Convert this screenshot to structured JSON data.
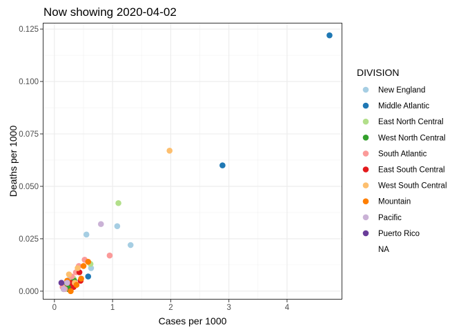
{
  "chart_data": {
    "type": "scatter",
    "title": "Now showing 2020-04-02",
    "xlabel": "Cases per 1000",
    "ylabel": "Deaths per 1000",
    "xlim": [
      -0.2,
      4.95
    ],
    "ylim": [
      -0.004,
      0.128
    ],
    "xticks": [
      0,
      1,
      2,
      3,
      4
    ],
    "xtick_labels": [
      "0",
      "1",
      "2",
      "3",
      "4"
    ],
    "yticks": [
      0.0,
      0.025,
      0.05,
      0.075,
      0.1,
      0.125
    ],
    "ytick_labels": [
      "0.000",
      "0.025",
      "0.050",
      "0.075",
      "0.100",
      "0.125"
    ],
    "grid": true,
    "legend_title": "DIVISION",
    "legend_position": "right",
    "series": [
      {
        "name": "New England",
        "color": "#a6cee3",
        "points": [
          [
            0.55,
            0.027
          ],
          [
            1.08,
            0.031
          ],
          [
            1.31,
            0.022
          ],
          [
            0.63,
            0.011
          ],
          [
            0.27,
            0.006
          ],
          [
            0.18,
            0.002
          ]
        ]
      },
      {
        "name": "Middle Atlantic",
        "color": "#1f78b4",
        "points": [
          [
            4.73,
            0.122
          ],
          [
            2.89,
            0.06
          ],
          [
            0.58,
            0.007
          ]
        ]
      },
      {
        "name": "East North Central",
        "color": "#b2df8a",
        "points": [
          [
            1.1,
            0.042
          ],
          [
            0.62,
            0.013
          ],
          [
            0.33,
            0.006
          ],
          [
            0.22,
            0.003
          ],
          [
            0.28,
            0.004
          ]
        ]
      },
      {
        "name": "West North Central",
        "color": "#33a02c",
        "points": [
          [
            0.2,
            0.003
          ],
          [
            0.26,
            0.002
          ],
          [
            0.3,
            0.004
          ],
          [
            0.16,
            0.001
          ],
          [
            0.34,
            0.005
          ],
          [
            0.24,
            0.001
          ]
        ]
      },
      {
        "name": "South Atlantic",
        "color": "#fb9a99",
        "points": [
          [
            0.95,
            0.017
          ],
          [
            0.52,
            0.015
          ],
          [
            0.42,
            0.012
          ],
          [
            0.3,
            0.007
          ],
          [
            0.22,
            0.004
          ],
          [
            0.14,
            0.002
          ],
          [
            0.37,
            0.009
          ],
          [
            0.18,
            0.001
          ]
        ]
      },
      {
        "name": "East South Central",
        "color": "#e31a1c",
        "points": [
          [
            0.43,
            0.009
          ],
          [
            0.45,
            0.005
          ],
          [
            0.33,
            0.002
          ],
          [
            0.28,
            0.004
          ]
        ]
      },
      {
        "name": "West South Central",
        "color": "#fdbf6f",
        "points": [
          [
            1.98,
            0.067
          ],
          [
            0.25,
            0.008
          ],
          [
            0.4,
            0.011
          ],
          [
            0.35,
            0.004
          ]
        ]
      },
      {
        "name": "Mountain",
        "color": "#ff7f00",
        "points": [
          [
            0.5,
            0.012
          ],
          [
            0.58,
            0.014
          ],
          [
            0.38,
            0.003
          ],
          [
            0.28,
            0.0
          ],
          [
            0.22,
            0.005
          ],
          [
            0.46,
            0.006
          ]
        ]
      },
      {
        "name": "Pacific",
        "color": "#cab2d6",
        "points": [
          [
            0.8,
            0.032
          ],
          [
            0.22,
            0.004
          ],
          [
            0.16,
            0.001
          ]
        ]
      },
      {
        "name": "Puerto Rico",
        "color": "#6a3d9a",
        "points": [
          [
            0.12,
            0.004
          ]
        ]
      },
      {
        "name": "NA",
        "color": "transparent",
        "points": []
      }
    ]
  }
}
